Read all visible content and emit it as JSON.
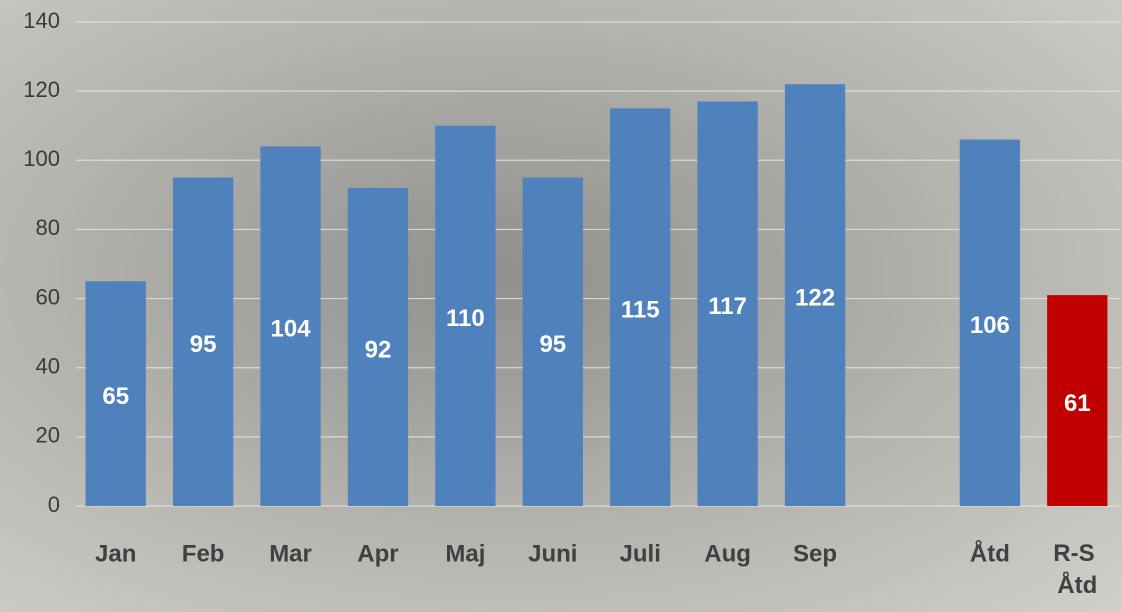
{
  "chart_data": {
    "type": "bar",
    "categories": [
      "Jan",
      "Feb",
      "Mar",
      "Apr",
      "Maj",
      "Juni",
      "Juli",
      "Aug",
      "Sep",
      null,
      "Åtd",
      "R-S Åtd"
    ],
    "values": [
      65,
      95,
      104,
      92,
      110,
      95,
      115,
      117,
      122,
      null,
      106,
      61
    ],
    "colors": [
      "#4f81bd",
      "#4f81bd",
      "#4f81bd",
      "#4f81bd",
      "#4f81bd",
      "#4f81bd",
      "#4f81bd",
      "#4f81bd",
      "#4f81bd",
      null,
      "#4f81bd",
      "#c00000"
    ],
    "ylim": [
      0,
      140
    ],
    "yticks": [
      0,
      20,
      40,
      60,
      80,
      100,
      120,
      140
    ],
    "grid": true
  }
}
